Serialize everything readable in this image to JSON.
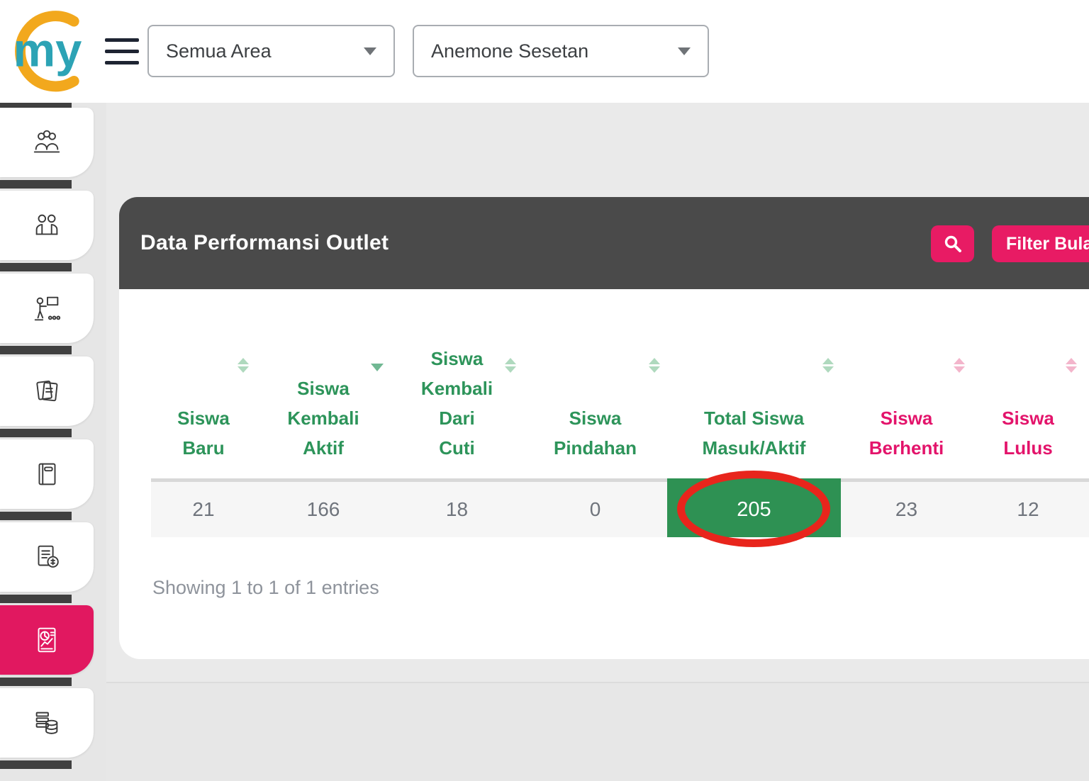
{
  "brand": {
    "logo_text": "my"
  },
  "topbar": {
    "area_select": {
      "value": "Semua Area"
    },
    "outlet_select": {
      "value": "Anemone Sesetan"
    }
  },
  "sidebar": {
    "items": [
      {
        "name": "students",
        "icon": "students-group-icon",
        "active": false
      },
      {
        "name": "teachers",
        "icon": "two-people-icon",
        "active": false
      },
      {
        "name": "classes",
        "icon": "presenter-icon",
        "active": false
      },
      {
        "name": "tickets",
        "icon": "documents-icon",
        "active": false
      },
      {
        "name": "journal",
        "icon": "book-icon",
        "active": false
      },
      {
        "name": "billing",
        "icon": "invoice-icon",
        "active": false
      },
      {
        "name": "reports",
        "icon": "report-chart-icon",
        "active": true
      },
      {
        "name": "master-data",
        "icon": "database-icon",
        "active": false
      }
    ]
  },
  "panel": {
    "title": "Data Performansi Outlet",
    "search_button": {
      "icon": "search-icon"
    },
    "filter_button": {
      "label": "Filter Bulan"
    }
  },
  "table": {
    "columns": [
      {
        "label": "Siswa Baru",
        "lines": [
          "Siswa",
          "Baru"
        ],
        "color": "green",
        "sort": "both"
      },
      {
        "label": "Siswa Kembali Aktif",
        "lines": [
          "Siswa",
          "Kembali",
          "Aktif"
        ],
        "color": "green",
        "sort": "desc"
      },
      {
        "label": "Siswa Kembali Dari Cuti",
        "lines": [
          "Siswa",
          "Kembali",
          "Dari",
          "Cuti"
        ],
        "color": "green",
        "sort": "both"
      },
      {
        "label": "Siswa Pindahan",
        "lines": [
          "Siswa",
          "Pindahan"
        ],
        "color": "green",
        "sort": "both"
      },
      {
        "label": "Total Siswa Masuk/Aktif",
        "lines": [
          "Total Siswa",
          "Masuk/Aktif"
        ],
        "color": "green",
        "sort": "both"
      },
      {
        "label": "Siswa Berhenti",
        "lines": [
          "Siswa",
          "Berhenti"
        ],
        "color": "pink",
        "sort": "both"
      },
      {
        "label": "Siswa Lulus",
        "lines": [
          "Siswa",
          "Lulus"
        ],
        "color": "pink",
        "sort": "both"
      }
    ],
    "rows": [
      [
        "21",
        "166",
        "18",
        "0",
        "205",
        "23",
        "12"
      ]
    ],
    "highlight": {
      "row": 0,
      "column": 4,
      "value": "205",
      "style": "green-cell",
      "annotation": "red-ellipse"
    },
    "footer": "Showing 1 to 1 of 1 entries"
  },
  "colors": {
    "accent_pink": "#E81B64",
    "active_pink": "#E11860",
    "header_green": "#2D945A",
    "header_pink": "#E3146B",
    "cell_green": "#2E9153",
    "annotation_red": "#E8251C",
    "panel_dark": "#4A4A4A",
    "sidebar_dark": "#404040",
    "logo_yellow": "#F2A81D",
    "logo_teal": "#2CA3B5"
  }
}
